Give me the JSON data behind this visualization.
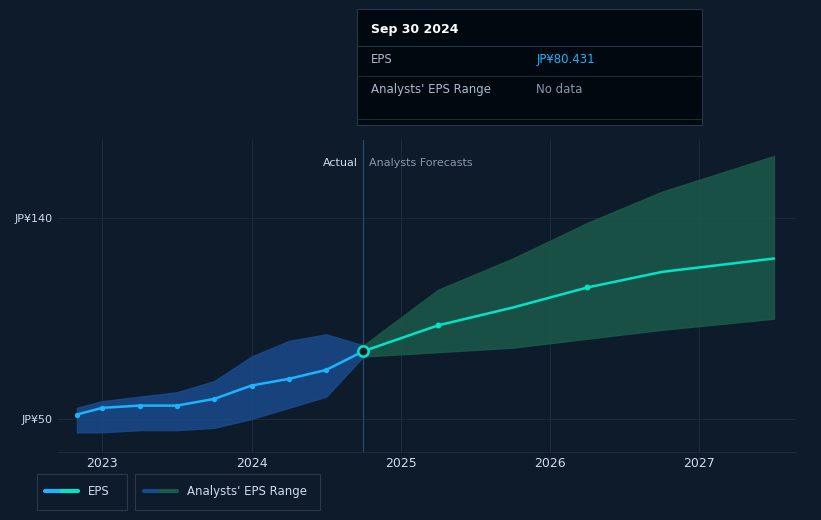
{
  "bg_color": "#0d1b2a",
  "plot_bg_color": "#0d1b2a",
  "grid_color": "#1e2d3d",
  "tooltip_title": "Sep 30 2024",
  "tooltip_eps_label": "EPS",
  "tooltip_eps_value": "JP¥80.431",
  "tooltip_range_label": "Analysts' EPS Range",
  "tooltip_range_value": "No data",
  "actual_label": "Actual",
  "forecast_label": "Analysts Forecasts",
  "ylabel_140": "JP¥140",
  "ylabel_50": "JP¥50",
  "ytick_140": 140,
  "ytick_50": 50,
  "xticklabels": [
    "2023",
    "2024",
    "2025",
    "2026",
    "2027"
  ],
  "xtick_positions": [
    2023,
    2024,
    2025,
    2026,
    2027
  ],
  "divider_x": 2024.75,
  "actual_x": [
    2022.83,
    2023.0,
    2023.25,
    2023.5,
    2023.75,
    2024.0,
    2024.25,
    2024.5,
    2024.75
  ],
  "actual_y": [
    52,
    55,
    56,
    56,
    59,
    65,
    68,
    72,
    80.431
  ],
  "actual_band_lower": [
    44,
    44,
    45,
    45,
    46,
    50,
    55,
    60,
    78
  ],
  "actual_band_upper": [
    55,
    58,
    60,
    62,
    67,
    78,
    85,
    88,
    83
  ],
  "forecast_x": [
    2024.75,
    2025.25,
    2025.75,
    2026.25,
    2026.75,
    2027.5
  ],
  "forecast_y": [
    80.431,
    92,
    100,
    109,
    116,
    122
  ],
  "forecast_band_lower": [
    78,
    80,
    82,
    86,
    90,
    95
  ],
  "forecast_band_upper": [
    83,
    108,
    122,
    138,
    152,
    168
  ],
  "actual_line_color": "#1ab5ff",
  "actual_band_color": "#1a4a8a",
  "forecast_line_color": "#00e5c8",
  "forecast_band_color": "#1a5a4a",
  "divider_color": "#2a4a6a",
  "dot_color_actual": "#1ab5ff",
  "dot_color_forecast": "#00e5c8",
  "text_color": "#8899aa",
  "text_color_white": "#ccddee",
  "tooltip_bg": "#000810",
  "tooltip_border": "#2a3a4a",
  "eps_value_color": "#1ab5ff",
  "legend_box_bg": "#0d1b2a",
  "legend_box_border": "#2a3a4a",
  "xmin": 2022.7,
  "xmax": 2027.65,
  "ymin": 35,
  "ymax": 175
}
